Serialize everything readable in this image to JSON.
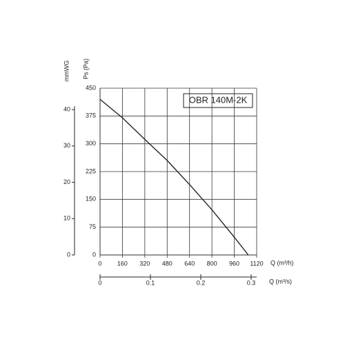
{
  "chart_data": {
    "type": "line",
    "title": "OBR 140M-2K",
    "x_label": "Q (m³/h)",
    "y_label": "Ps (Pa)",
    "y2_label": "mmWG",
    "x2_label": "Q (m³/s)",
    "xlim": [
      0,
      1120
    ],
    "xticks": [
      0,
      160,
      320,
      480,
      640,
      800,
      960,
      1120
    ],
    "ylim": [
      0,
      450
    ],
    "yticks": [
      0,
      75,
      150,
      225,
      300,
      375,
      450
    ],
    "y2lim": [
      0,
      45.9
    ],
    "y2ticks": [
      0,
      10,
      20,
      30,
      40
    ],
    "x2lim": [
      0,
      0.311
    ],
    "x2ticks": [
      0,
      0.1,
      0.2,
      0.3
    ],
    "grid": true,
    "series": [
      {
        "color": "#222222",
        "x": [
          0,
          160,
          320,
          480,
          640,
          800,
          960,
          1060
        ],
        "values": [
          420,
          370,
          312,
          255,
          190,
          122,
          48,
          0
        ]
      }
    ]
  }
}
